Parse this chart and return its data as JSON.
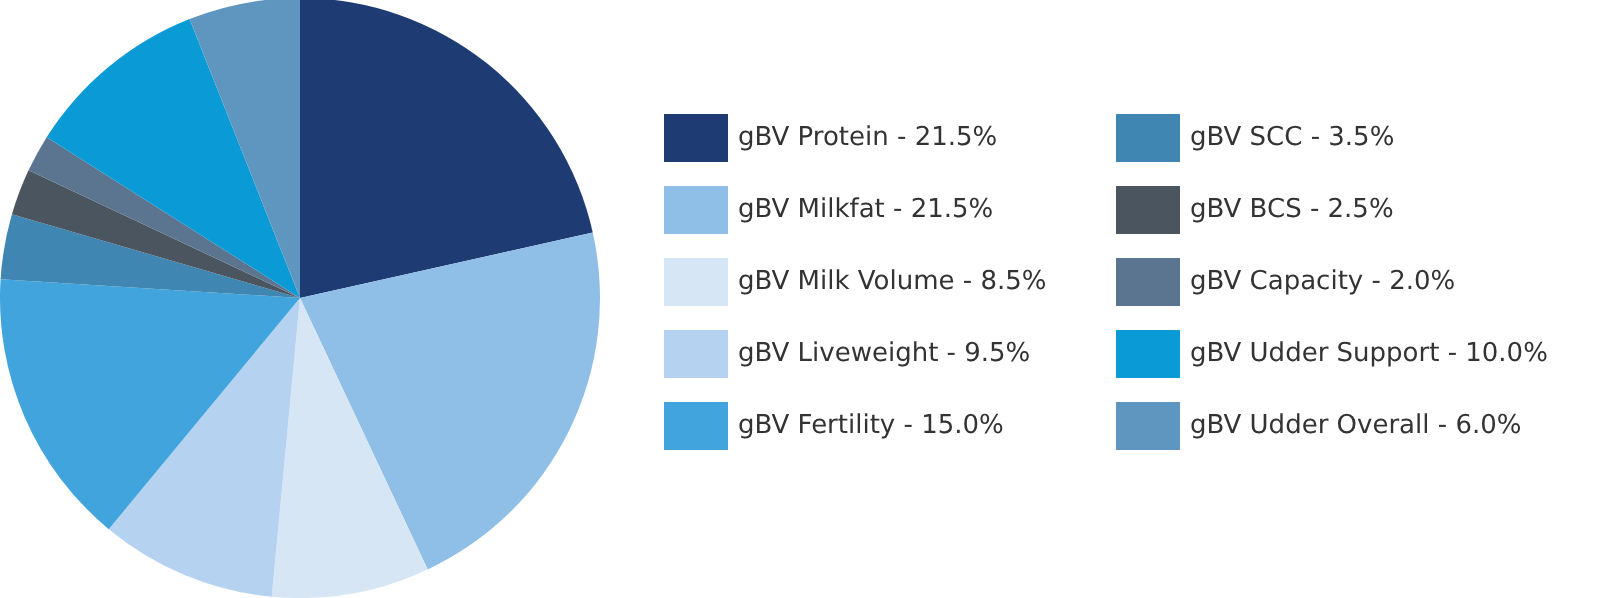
{
  "chart_data": {
    "type": "pie",
    "categories": [
      "gBV Protein",
      "gBV Milkfat",
      "gBV Milk Volume",
      "gBV Liveweight",
      "gBV Fertility",
      "gBV SCC",
      "gBV BCS",
      "gBV Capacity",
      "gBV Udder Support",
      "gBV Udder Overall"
    ],
    "values": [
      21.5,
      21.5,
      8.5,
      9.5,
      15.0,
      3.5,
      2.5,
      2.0,
      10.0,
      6.0
    ],
    "value_labels": [
      "21.5%",
      "21.5%",
      "8.5%",
      "9.5%",
      "15.0%",
      "3.5%",
      "2.5%",
      "2.0%",
      "10.0%",
      "6.0%"
    ],
    "colors": [
      "#1f3b73",
      "#8fbfe6",
      "#d6e6f5",
      "#b5d3f0",
      "#41a4dc",
      "#3f86b3",
      "#4a5560",
      "#5b7590",
      "#0a9ad6",
      "#5e96c0"
    ],
    "legend": "right"
  }
}
